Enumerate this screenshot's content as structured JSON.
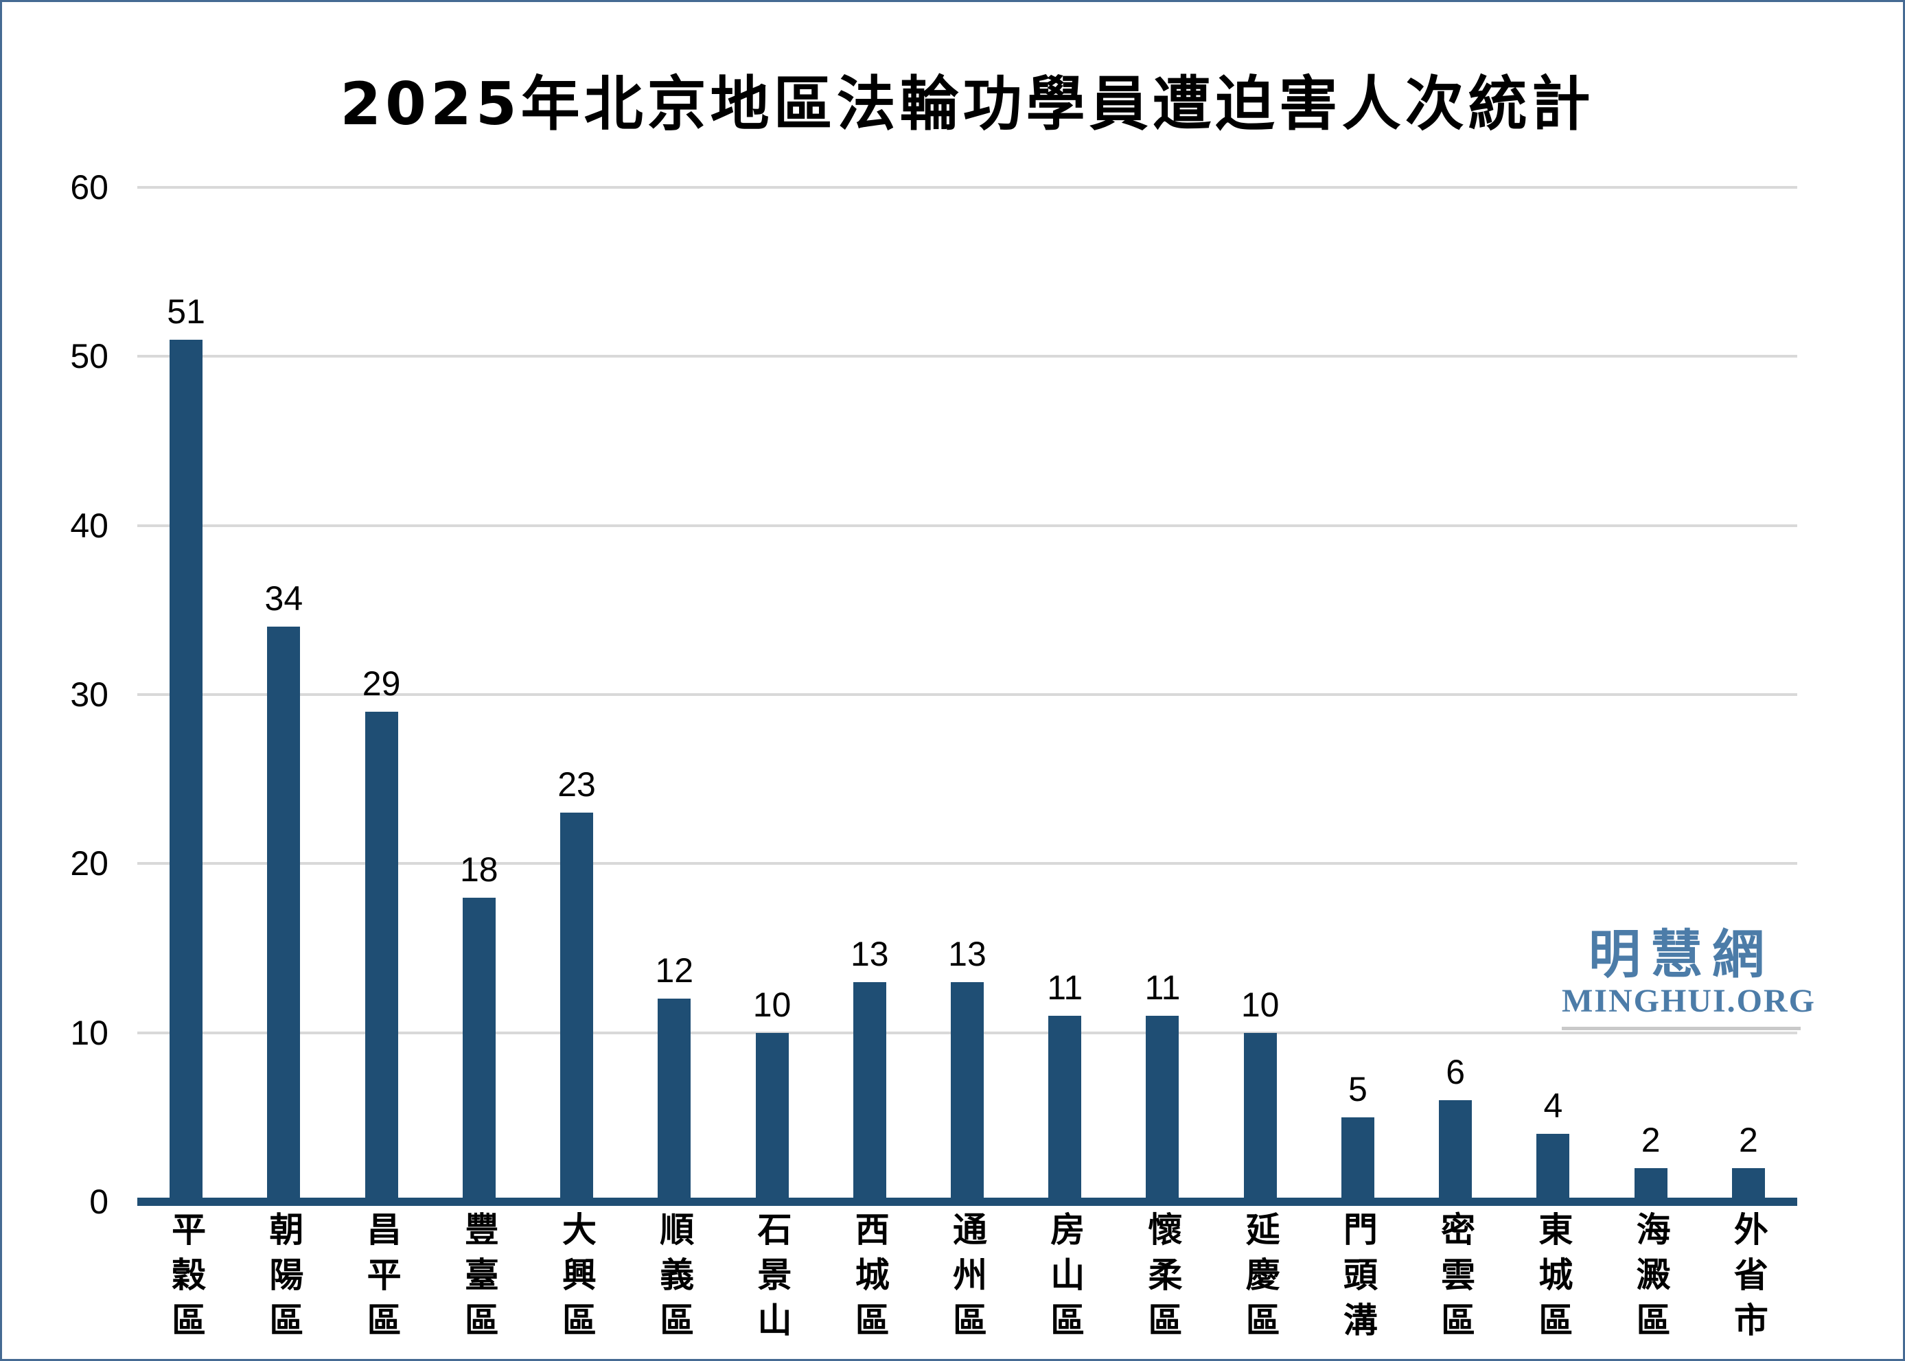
{
  "watermark": {
    "chinese": "明慧網",
    "domain": "MINGHUI.ORG",
    "color": "#4c7ca8"
  },
  "chart_data": {
    "type": "bar",
    "title": "2025年北京地區法輪功學員遭迫害人次統計",
    "categories": [
      "平穀區",
      "朝陽區",
      "昌平區",
      "豐臺區",
      "大興區",
      "順義區",
      "石景山",
      "西城區",
      "通州區",
      "房山區",
      "懷柔區",
      "延慶區",
      "門頭溝",
      "密雲區",
      "東城區",
      "海澱區",
      "外省市"
    ],
    "values": [
      51,
      34,
      29,
      18,
      23,
      12,
      10,
      13,
      13,
      11,
      11,
      10,
      5,
      6,
      4,
      2,
      2
    ],
    "xlabel": "",
    "ylabel": "",
    "ylim": [
      0,
      60
    ],
    "yticks": [
      0,
      10,
      20,
      30,
      40,
      50,
      60
    ],
    "grid": "horizontal-gridlines-every-10",
    "legend": "none",
    "data_labels": true,
    "bar_color": "#1f4e74",
    "axis_line_color": "#1f4e74",
    "gridline_color": "#d9d9d9",
    "page_border_color": "#466a93"
  }
}
